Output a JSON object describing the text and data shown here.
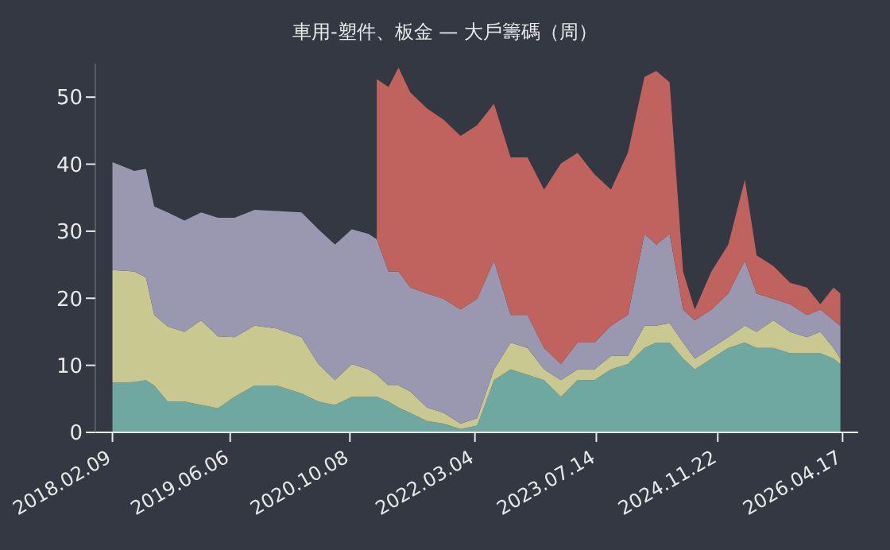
{
  "chart_data": {
    "type": "area",
    "title": "車用-塑件、板金 — 大戶籌碼（周）",
    "stacked": true,
    "grid": false,
    "x": [
      "2018-02-09",
      "2018-05-09",
      "2018-06-26",
      "2018-07-30",
      "2018-09-23",
      "2018-12-01",
      "2019-02-07",
      "2019-04-17",
      "2019-06-24",
      "2019-09-14",
      "2019-12-12",
      "2020-03-24",
      "2020-06-01",
      "2020-08-08",
      "2020-10-16",
      "2020-12-23",
      "2021-01-26",
      "2021-03-15",
      "2021-04-25",
      "2021-06-12",
      "2021-08-20",
      "2021-10-27",
      "2022-01-04",
      "2022-03-13",
      "2022-05-21",
      "2022-07-28",
      "2022-10-05",
      "2022-12-12",
      "2023-02-19",
      "2023-04-28",
      "2023-07-06",
      "2023-09-12",
      "2023-11-20",
      "2024-01-27",
      "2024-03-15",
      "2024-05-09",
      "2024-07-03",
      "2024-08-20",
      "2024-10-27",
      "2025-01-04",
      "2025-03-13",
      "2025-04-30",
      "2025-07-08",
      "2025-09-14",
      "2025-11-22",
      "2026-01-16",
      "2026-03-11",
      "2026-04-08"
    ],
    "series": [
      {
        "color": "#6fa8a0",
        "values": [
          7.4,
          7.5,
          7.8,
          7,
          4.6,
          4.6,
          4.1,
          3.6,
          5.3,
          7,
          7,
          5.8,
          4.6,
          4.1,
          5.3,
          5.3,
          5.3,
          4.6,
          3.7,
          2.9,
          1.7,
          1.3,
          0.5,
          1,
          7.8,
          9.4,
          8.6,
          7.8,
          5.3,
          7.8,
          7.8,
          9.4,
          10.2,
          12.6,
          13.4,
          13.4,
          11,
          9.4,
          11,
          12.6,
          13.4,
          12.6,
          12.6,
          11.8,
          11.8,
          11.8,
          11,
          10.2
        ]
      },
      {
        "color": "#c8c890",
        "values": [
          16.8,
          16.5,
          15.3,
          10.5,
          11.2,
          10.4,
          12.6,
          10.7,
          8.9,
          8.9,
          8.5,
          8.4,
          5.6,
          3.7,
          4.9,
          4.1,
          3.3,
          2.4,
          3.3,
          3.2,
          2,
          1.6,
          0.8,
          1.1,
          1.6,
          4,
          4,
          1.6,
          2.5,
          1.6,
          1.6,
          2,
          1.2,
          3.3,
          2.5,
          2.9,
          2.4,
          1.6,
          1.6,
          1.6,
          2.5,
          2.4,
          4.1,
          3.2,
          2.4,
          3.2,
          1.6,
          0.8
        ]
      },
      {
        "color": "#9a98b0",
        "values": [
          16.1,
          15,
          16.2,
          16.2,
          17,
          16.6,
          16.1,
          17.7,
          17.8,
          17.3,
          17.5,
          18.6,
          20.1,
          20.2,
          20.1,
          20.2,
          20.2,
          17,
          17,
          15.5,
          17,
          17,
          17,
          17.8,
          16.2,
          4.1,
          4.9,
          3.2,
          2.4,
          4,
          4,
          4.5,
          6.1,
          13.7,
          12.1,
          13.3,
          4.9,
          5.7,
          5.7,
          6.5,
          9.7,
          5.7,
          3.2,
          4.1,
          3.3,
          3.3,
          4.1,
          4.9
        ]
      },
      {
        "color": "#c0635e",
        "values": [
          null,
          null,
          null,
          null,
          null,
          null,
          null,
          null,
          null,
          null,
          null,
          null,
          null,
          null,
          null,
          null,
          23.9,
          27.5,
          30.4,
          29.1,
          27.6,
          26.7,
          25.9,
          25.9,
          23.4,
          23.5,
          23.5,
          23.6,
          29.9,
          28.3,
          25.1,
          20.3,
          24.2,
          23.4,
          25.9,
          22.6,
          5.7,
          1.6,
          5.7,
          7.3,
          12.1,
          5.7,
          4.9,
          3.2,
          4.1,
          0.8,
          4.9,
          4.8
        ]
      }
    ],
    "ylim": [
      0,
      55
    ],
    "yticks": [
      0,
      10,
      20,
      30,
      40,
      50
    ],
    "xlim": [
      "2017-12-01",
      "2026-06-20"
    ],
    "xticks": [
      {
        "value": "2018-02-09",
        "label": "2018.02.09"
      },
      {
        "value": "2019-06-06",
        "label": "2019.06.06"
      },
      {
        "value": "2020-10-08",
        "label": "2020.10.08"
      },
      {
        "value": "2022-03-04",
        "label": "2022.03.04"
      },
      {
        "value": "2023-07-14",
        "label": "2023.07.14"
      },
      {
        "value": "2024-11-22",
        "label": "2024.11.22"
      },
      {
        "value": "2026-04-17",
        "label": "2026.04.17"
      }
    ]
  }
}
